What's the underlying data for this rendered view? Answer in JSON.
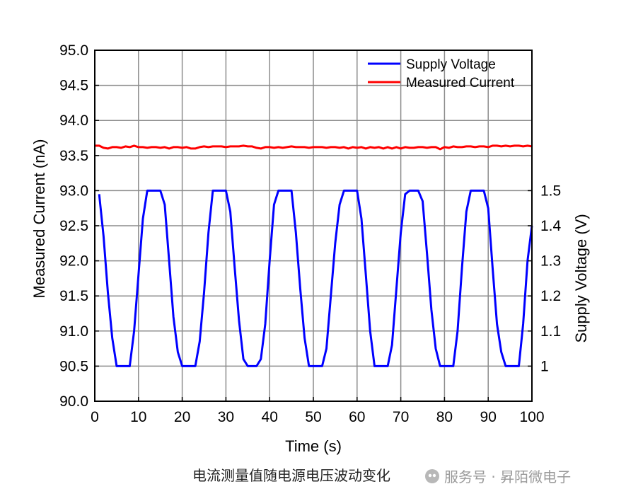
{
  "chart_data": {
    "type": "line",
    "title": "",
    "xlabel": "Time (s)",
    "ylabel_left": "Measured Current (nA)",
    "ylabel_right": "Supply Voltage (V)",
    "xlim": [
      0,
      100
    ],
    "ylim_left": [
      90.0,
      95.0
    ],
    "ylim_right_tick_values": [
      1,
      1.1,
      1.2,
      1.3,
      1.4,
      1.5
    ],
    "xticks": [
      0,
      10,
      20,
      30,
      40,
      50,
      60,
      70,
      80,
      90,
      100
    ],
    "xtick_labels": [
      "0",
      "10",
      "20",
      "30",
      "40",
      "50",
      "60",
      "70",
      "80",
      "90",
      "100"
    ],
    "yticks_left": [
      90.0,
      90.5,
      91.0,
      91.5,
      92.0,
      92.5,
      93.0,
      93.5,
      94.0,
      94.5,
      95.0
    ],
    "ytick_labels_left": [
      "90.0",
      "90.5",
      "91.0",
      "91.5",
      "92.0",
      "92.5",
      "93.0",
      "93.5",
      "94.0",
      "94.5",
      "95.0"
    ],
    "ytick_labels_right": [
      "1",
      "1.1",
      "1.2",
      "1.3",
      "1.4",
      "1.5"
    ],
    "grid": true,
    "legend_position": "top-right",
    "series": [
      {
        "name": "Supply Voltage",
        "color": "#0000ff",
        "axis": "right",
        "x": [
          1,
          2,
          3,
          4,
          5,
          6,
          7,
          8,
          9,
          10,
          11,
          12,
          13,
          14,
          15,
          16,
          17,
          18,
          19,
          20,
          21,
          22,
          23,
          24,
          25,
          26,
          27,
          28,
          29,
          30,
          31,
          32,
          33,
          34,
          35,
          36,
          37,
          38,
          39,
          40,
          41,
          42,
          43,
          44,
          45,
          46,
          47,
          48,
          49,
          50,
          51,
          52,
          53,
          54,
          55,
          56,
          57,
          58,
          59,
          60,
          61,
          62,
          63,
          64,
          65,
          66,
          67,
          68,
          69,
          70,
          71,
          72,
          73,
          74,
          75,
          76,
          77,
          78,
          79,
          80,
          81,
          82,
          83,
          84,
          85,
          86,
          87,
          88,
          89,
          90,
          91,
          92,
          93,
          94,
          95,
          96,
          97,
          98,
          99,
          100
        ],
        "values": [
          1.49,
          1.37,
          1.21,
          1.08,
          1.0,
          1.0,
          1.0,
          1.0,
          1.1,
          1.26,
          1.42,
          1.5,
          1.5,
          1.5,
          1.5,
          1.46,
          1.3,
          1.14,
          1.04,
          1.0,
          1.0,
          1.0,
          1.0,
          1.07,
          1.21,
          1.38,
          1.5,
          1.5,
          1.5,
          1.5,
          1.44,
          1.28,
          1.13,
          1.02,
          1.0,
          1.0,
          1.0,
          1.02,
          1.12,
          1.3,
          1.46,
          1.5,
          1.5,
          1.5,
          1.5,
          1.38,
          1.22,
          1.08,
          1.0,
          1.0,
          1.0,
          1.0,
          1.05,
          1.2,
          1.35,
          1.46,
          1.5,
          1.5,
          1.5,
          1.5,
          1.42,
          1.26,
          1.1,
          1.0,
          1.0,
          1.0,
          1.0,
          1.06,
          1.22,
          1.38,
          1.49,
          1.5,
          1.5,
          1.5,
          1.47,
          1.32,
          1.16,
          1.05,
          1.0,
          1.0,
          1.0,
          1.0,
          1.1,
          1.28,
          1.44,
          1.5,
          1.5,
          1.5,
          1.5,
          1.45,
          1.28,
          1.12,
          1.04,
          1.0,
          1.0,
          1.0,
          1.0,
          1.12,
          1.3,
          1.4
        ]
      },
      {
        "name": "Measured Current",
        "color": "#ff0000",
        "axis": "left",
        "x": [
          0,
          1,
          2,
          3,
          4,
          5,
          6,
          7,
          8,
          9,
          10,
          11,
          12,
          13,
          14,
          15,
          16,
          17,
          18,
          19,
          20,
          21,
          22,
          23,
          24,
          25,
          26,
          27,
          28,
          29,
          30,
          31,
          32,
          33,
          34,
          35,
          36,
          37,
          38,
          39,
          40,
          41,
          42,
          43,
          44,
          45,
          46,
          47,
          48,
          49,
          50,
          51,
          52,
          53,
          54,
          55,
          56,
          57,
          58,
          59,
          60,
          61,
          62,
          63,
          64,
          65,
          66,
          67,
          68,
          69,
          70,
          71,
          72,
          73,
          74,
          75,
          76,
          77,
          78,
          79,
          80,
          81,
          82,
          83,
          84,
          85,
          86,
          87,
          88,
          89,
          90,
          91,
          92,
          93,
          94,
          95,
          96,
          97,
          98,
          99,
          100
        ],
        "values": [
          93.64,
          93.64,
          93.61,
          93.6,
          93.62,
          93.62,
          93.61,
          93.63,
          93.62,
          93.64,
          93.62,
          93.62,
          93.61,
          93.62,
          93.62,
          93.61,
          93.62,
          93.6,
          93.62,
          93.62,
          93.61,
          93.62,
          93.6,
          93.6,
          93.62,
          93.63,
          93.62,
          93.63,
          93.63,
          93.63,
          93.62,
          93.63,
          93.63,
          93.63,
          93.64,
          93.63,
          93.63,
          93.61,
          93.6,
          93.62,
          93.62,
          93.61,
          93.62,
          93.61,
          93.62,
          93.63,
          93.62,
          93.62,
          93.62,
          93.61,
          93.62,
          93.62,
          93.62,
          93.61,
          93.62,
          93.62,
          93.61,
          93.62,
          93.6,
          93.62,
          93.61,
          93.62,
          93.6,
          93.62,
          93.61,
          93.62,
          93.6,
          93.62,
          93.6,
          93.62,
          93.6,
          93.62,
          93.61,
          93.61,
          93.62,
          93.62,
          93.61,
          93.62,
          93.62,
          93.59,
          93.62,
          93.61,
          93.63,
          93.62,
          93.62,
          93.63,
          93.63,
          93.62,
          93.63,
          93.63,
          93.62,
          93.64,
          93.64,
          93.63,
          93.64,
          93.63,
          93.64,
          93.64,
          93.63,
          93.64,
          93.63
        ]
      }
    ]
  },
  "caption": "电流测量值随电源电压波动变化",
  "watermark": "服务号 · 昇陌微电子"
}
